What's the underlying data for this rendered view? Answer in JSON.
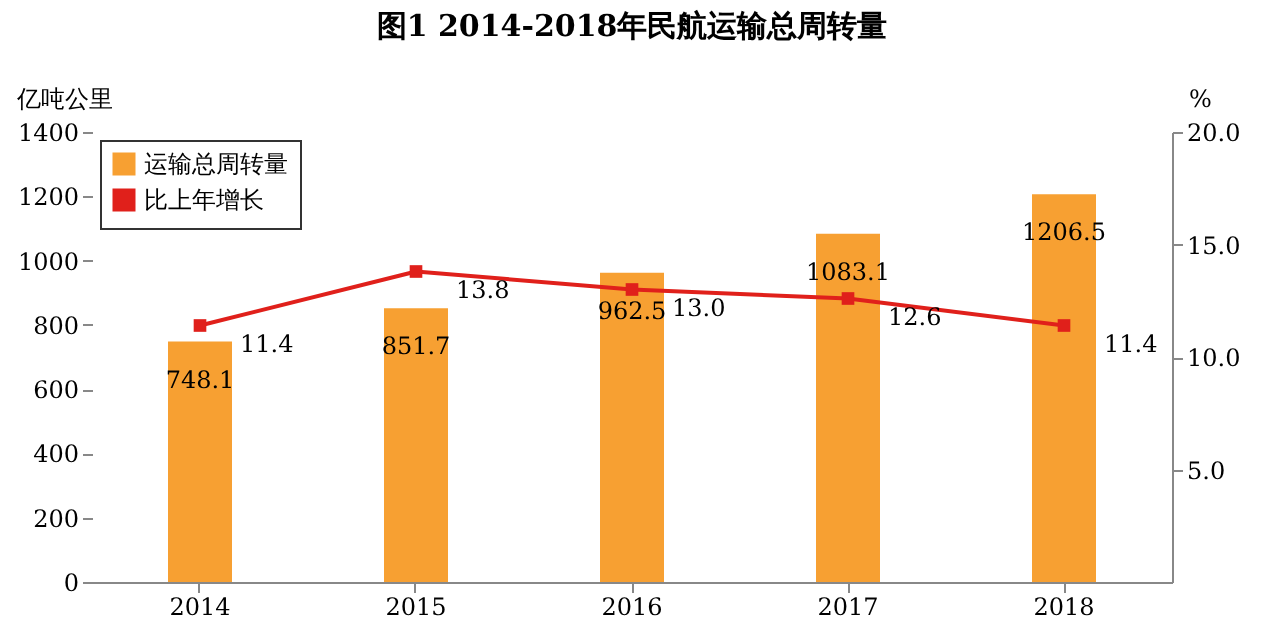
{
  "chart_data": {
    "type": "bar",
    "title": "图1 2014-2018年民航运输总周转量",
    "ylabel": "亿吨公里",
    "y2label": "%",
    "categories": [
      "2014",
      "2015",
      "2016",
      "2017",
      "2018"
    ],
    "series": [
      {
        "name": "运输总周转量",
        "color": "#f7a032",
        "values": [
          748.1,
          851.7,
          962.5,
          1083.1,
          1206.5
        ],
        "value_labels": [
          "748.1",
          "851.7",
          "962.5",
          "1083.1",
          "1206.5"
        ]
      },
      {
        "name": "比上年增长",
        "type": "line",
        "axis": "y2",
        "color": "#e0201b",
        "marker": "square",
        "values": [
          11.4,
          13.8,
          13.0,
          12.6,
          11.4
        ],
        "value_labels": [
          "11.4",
          "13.8",
          "13.0",
          "12.6",
          "11.4"
        ]
      }
    ],
    "ylim": [
      0,
      1400
    ],
    "yticks": [
      0,
      200,
      400,
      600,
      800,
      1000,
      1200,
      1400
    ],
    "y2lim": [
      0,
      20
    ],
    "y2ticks": [
      {
        "value": 5,
        "label": "5.0"
      },
      {
        "value": 10,
        "label": "10.0"
      },
      {
        "value": 15,
        "label": "15.0"
      },
      {
        "value": 20,
        "label": "20.0"
      }
    ],
    "legend": "top left",
    "grid": false
  }
}
